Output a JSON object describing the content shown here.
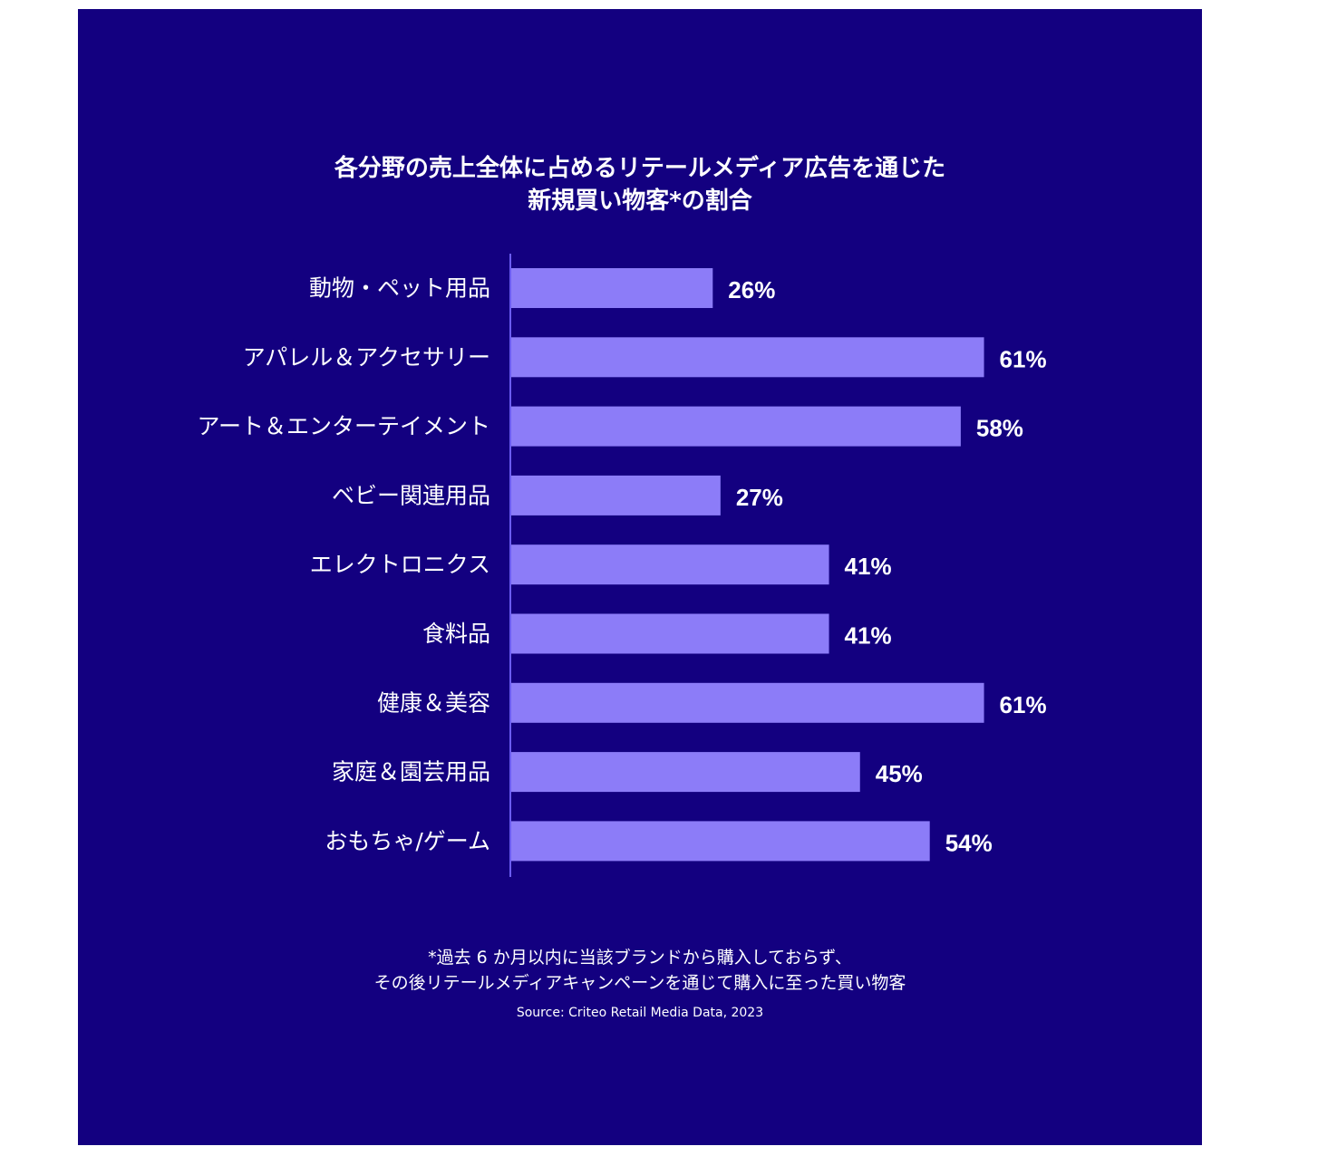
{
  "chart_data": {
    "type": "bar",
    "orientation": "horizontal",
    "title": "各分野の売上全体に占めるリテールメディア広告を通じた",
    "title_line2": "新規買い物客*の割合",
    "categories": [
      "動物・ペット用品",
      "アパレル＆アクセサリー",
      "アート＆エンターテイメント",
      "ベビー関連用品",
      "エレクトロニクス",
      "食料品",
      "健康＆美容",
      "家庭＆園芸用品",
      "おもちゃ/ゲーム"
    ],
    "values": [
      26,
      61,
      58,
      27,
      41,
      41,
      61,
      45,
      54
    ],
    "value_labels": [
      "26%",
      "61%",
      "58%",
      "27%",
      "41%",
      "41%",
      "61%",
      "45%",
      "54%"
    ],
    "unit": "%",
    "xlim": [
      0,
      100
    ],
    "grid": false,
    "legend": "none",
    "bar_color": "#8C7CF8",
    "background_color": "#130080",
    "text_color": "#FFFFFF",
    "axis_color": "#6B5CF0"
  },
  "footnote": {
    "line1": "*過去 6 か月以内に当該ブランドから購入しておらず、",
    "line2": "その後リテールメディアキャンペーンを通じて購入に至った買い物客"
  },
  "source": "Source: Criteo Retail Media Data, 2023"
}
